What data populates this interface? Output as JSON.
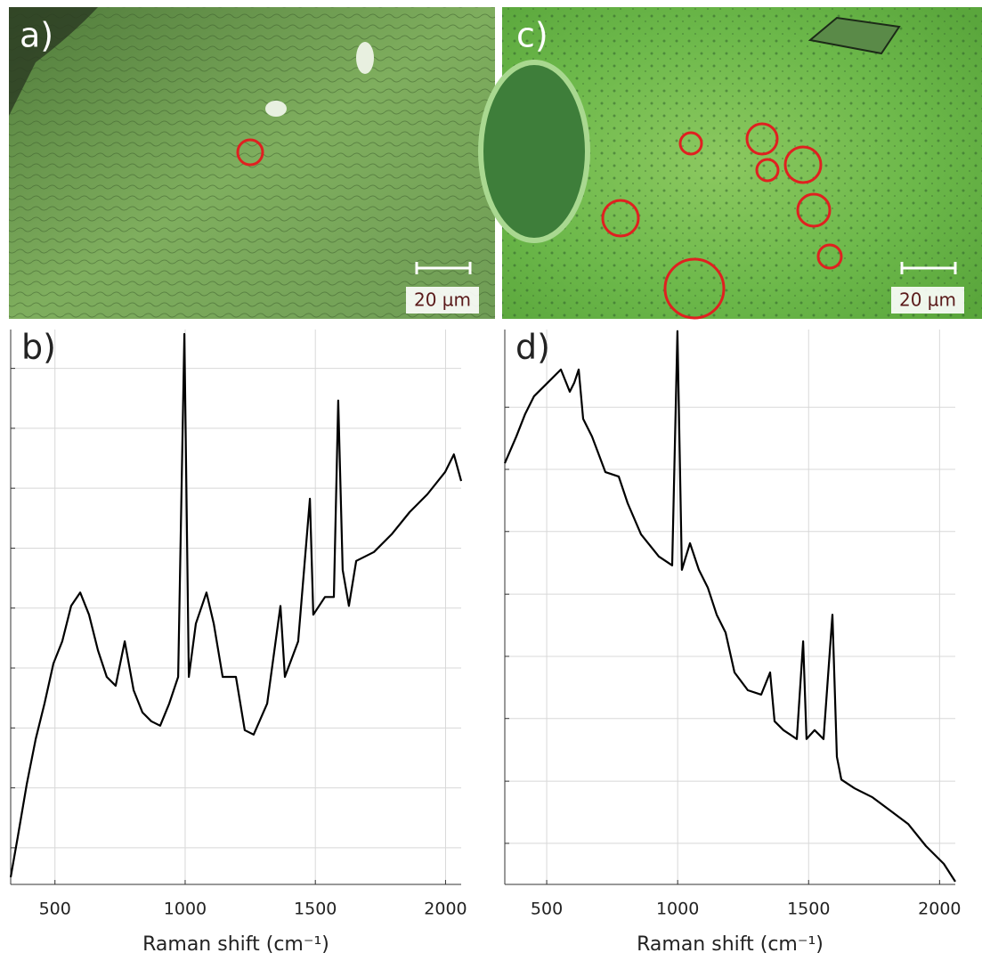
{
  "images": [
    {
      "label": "a)",
      "scale_bar": "20 µm"
    },
    {
      "label": "c)",
      "scale_bar": "20 µm"
    }
  ],
  "chart_data": [
    {
      "type": "line",
      "panel_label": "b)",
      "xlabel": "Raman shift (cm⁻¹)",
      "color": "#000000",
      "label_color": "#222222",
      "xlim": [
        330,
        2060
      ],
      "xticks": [
        500,
        1000,
        1500,
        2000
      ],
      "ylim": [
        0,
        100
      ],
      "yticks": [
        6.6,
        17.4,
        28.2,
        39,
        49.8,
        60.6,
        71.4,
        82.2,
        93
      ],
      "grid": true,
      "x": [
        330,
        357,
        392,
        426,
        460,
        494,
        528,
        562,
        597,
        631,
        665,
        699,
        733,
        768,
        802,
        836,
        870,
        904,
        939,
        973,
        997,
        1014,
        1041,
        1082,
        1110,
        1144,
        1195,
        1229,
        1263,
        1315,
        1366,
        1383,
        1434,
        1479,
        1492,
        1537,
        1571,
        1588,
        1605,
        1629,
        1657,
        1725,
        1793,
        1862,
        1930,
        1998,
        2032,
        2060
      ],
      "values": [
        1.3,
        8.5,
        18.1,
        26.2,
        32.6,
        39.8,
        43.8,
        50.2,
        52.6,
        48.6,
        42.2,
        37.4,
        35.8,
        43.8,
        35,
        31,
        29.4,
        28.6,
        32.6,
        37.4,
        99.2,
        37.4,
        47,
        52.6,
        47,
        37.4,
        37.4,
        27.8,
        27,
        32.6,
        50.2,
        37.4,
        43.8,
        69.5,
        48.6,
        51.8,
        51.8,
        87.2,
        56.7,
        50.2,
        58.3,
        59.9,
        63.1,
        67.1,
        70.3,
        74.3,
        77.5,
        72.7
      ]
    },
    {
      "type": "line",
      "panel_label": "d)",
      "xlabel": "Raman shift (cm⁻¹)",
      "color": "#000000",
      "label_color": "#5a1a1a",
      "xlim": [
        340,
        2060
      ],
      "xticks": [
        500,
        1000,
        1500,
        2000
      ],
      "ylim": [
        0,
        100
      ],
      "yticks": [
        7.4,
        18.6,
        29.9,
        41.1,
        52.3,
        63.6,
        74.8,
        86
      ],
      "grid": true,
      "x": [
        340,
        384,
        418,
        452,
        503,
        554,
        588,
        605,
        622,
        639,
        673,
        724,
        775,
        809,
        860,
        928,
        979,
        999,
        1016,
        1047,
        1081,
        1115,
        1149,
        1183,
        1217,
        1268,
        1319,
        1353,
        1370,
        1404,
        1455,
        1479,
        1492,
        1523,
        1557,
        1591,
        1608,
        1625,
        1676,
        1744,
        1812,
        1880,
        1948,
        2016,
        2060
      ],
      "values": [
        75.9,
        80.7,
        84.8,
        88,
        90.4,
        92.8,
        88.8,
        90.4,
        92.8,
        83.9,
        80.7,
        74.3,
        73.5,
        68.7,
        63.1,
        59.1,
        57.5,
        99.7,
        56.7,
        61.5,
        56.7,
        53.5,
        48.6,
        45.4,
        38.2,
        35,
        34.2,
        38.2,
        29.4,
        27.8,
        26.2,
        43.8,
        26.2,
        27.8,
        26.2,
        48.6,
        23,
        18.9,
        17.3,
        15.7,
        13.3,
        10.9,
        6.9,
        3.7,
        0.5
      ]
    }
  ]
}
